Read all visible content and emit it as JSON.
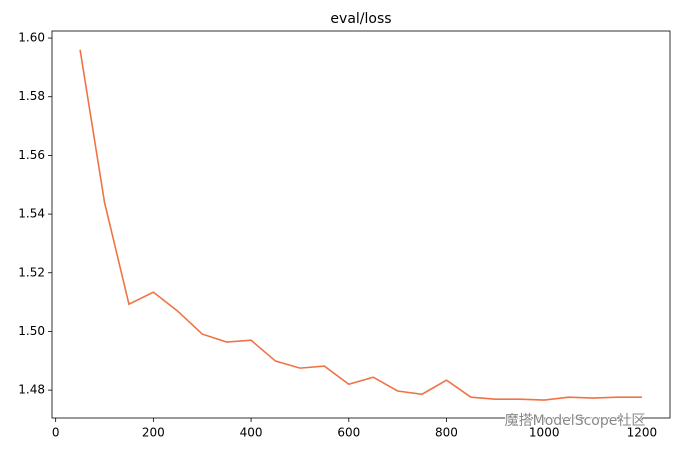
{
  "chart_data": {
    "type": "line",
    "title": "eval/loss",
    "x": [
      50,
      100,
      150,
      200,
      250,
      300,
      350,
      400,
      450,
      500,
      550,
      600,
      650,
      700,
      750,
      800,
      850,
      900,
      950,
      1000,
      1050,
      1100,
      1150,
      1200
    ],
    "series": [
      {
        "name": "eval/loss",
        "color": "#f07345",
        "values": [
          1.596,
          1.544,
          1.5093,
          1.5134,
          1.5069,
          1.4991,
          1.4964,
          1.497,
          1.4899,
          1.4875,
          1.4882,
          1.482,
          1.4844,
          1.4797,
          1.4786,
          1.4834,
          1.4776,
          1.4769,
          1.4769,
          1.4766,
          1.4776,
          1.4773,
          1.4776,
          1.4776
        ]
      }
    ],
    "xlim": [
      -7.5,
      1257.5
    ],
    "ylim": [
      1.4705,
      1.6024
    ],
    "xticks": [
      0,
      200,
      400,
      600,
      800,
      1000,
      1200
    ],
    "yticks": [
      1.48,
      {
        "value": 1.5,
        "label": "1.50"
      },
      1.52,
      1.54,
      1.56,
      1.58,
      {
        "value": 1.6,
        "label": "1.60"
      }
    ],
    "grid": false,
    "watermark": "魔搭ModelScope社区"
  }
}
